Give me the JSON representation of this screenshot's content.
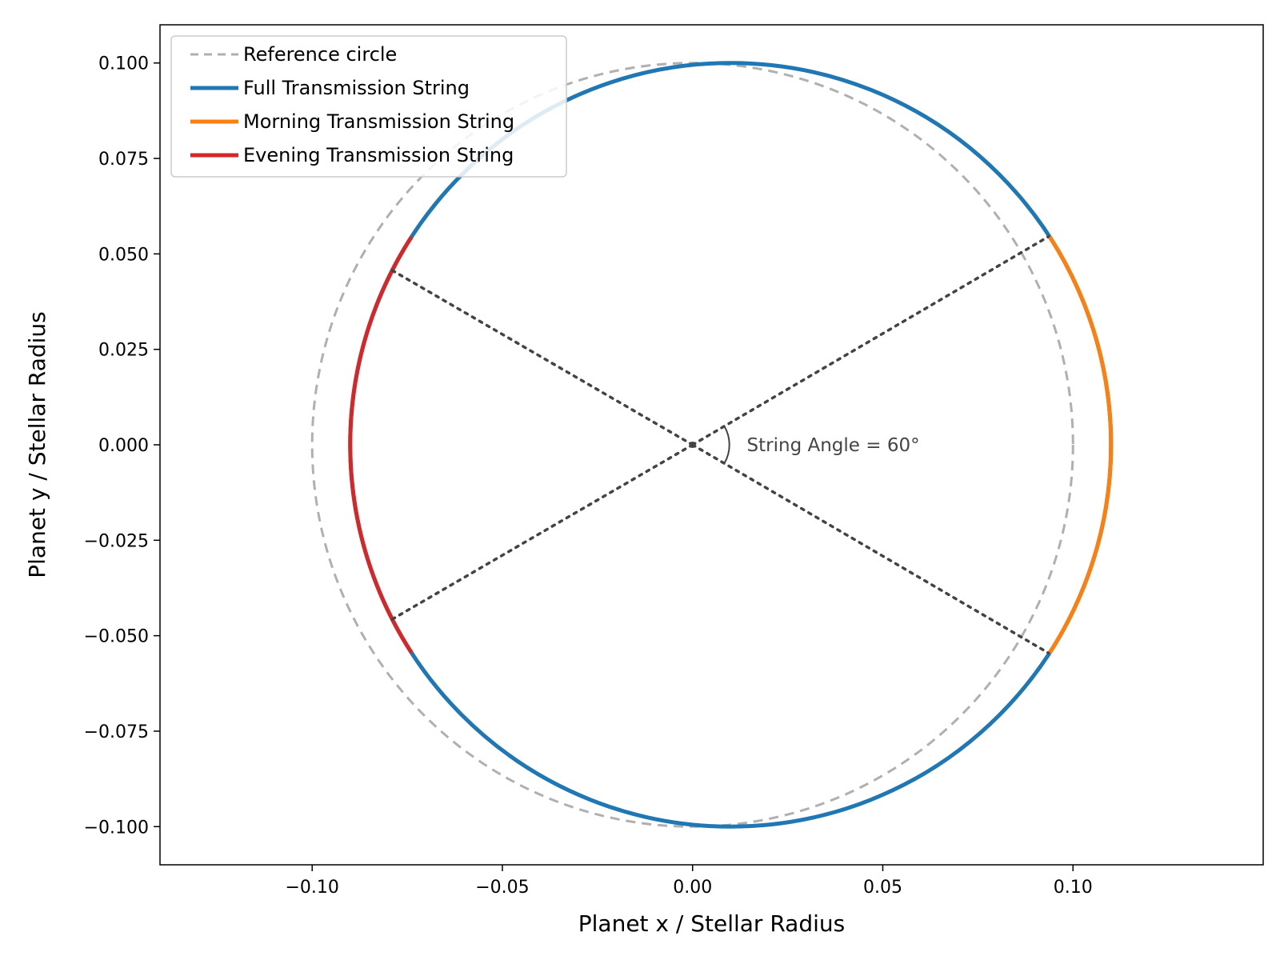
{
  "chart_data": {
    "type": "line",
    "title": "",
    "xlabel": "Planet x / Stellar Radius",
    "ylabel": "Planet y / Stellar Radius",
    "xlim": [
      -0.14,
      0.15
    ],
    "ylim": [
      -0.11,
      0.11
    ],
    "grid": false,
    "legend_position": "top-left",
    "x_ticks": [
      -0.1,
      -0.05,
      0.0,
      0.05,
      0.1
    ],
    "x_tick_labels": [
      "−0.10",
      "−0.05",
      "0.00",
      "0.05",
      "0.10"
    ],
    "y_ticks": [
      0.1,
      0.075,
      0.05,
      0.025,
      0.0,
      -0.025,
      -0.05,
      -0.075,
      -0.1
    ],
    "y_tick_labels": [
      "0.100",
      "0.075",
      "0.050",
      "0.025",
      "0.000",
      "−0.025",
      "−0.050",
      "−0.075",
      "−0.100"
    ],
    "series": [
      {
        "name": "Reference circle",
        "shape": "circle",
        "center": [
          0.0,
          0.0
        ],
        "radius": 0.1,
        "color": "#b0b0b0",
        "style": "dashed"
      },
      {
        "name": "Full Transmission String",
        "shape": "ellipse",
        "center": [
          0.01,
          0.0
        ],
        "rx": 0.1,
        "ry": 0.1,
        "color": "#1f77b4",
        "style": "solid"
      },
      {
        "name": "Morning Transmission String",
        "shape": "arc",
        "center": [
          0.01,
          0.0
        ],
        "rx": 0.1,
        "ry": 0.1,
        "angle_range_deg": [
          -33,
          33
        ],
        "color": "#ff7f0e",
        "style": "solid"
      },
      {
        "name": "Evening Transmission String",
        "shape": "arc",
        "center": [
          0.01,
          0.0
        ],
        "rx": 0.1,
        "ry": 0.1,
        "angle_range_deg": [
          147,
          213
        ],
        "color": "#d62728",
        "style": "solid"
      }
    ],
    "string_lines": [
      {
        "from": [
          0.0,
          0.0
        ],
        "to": [
          0.0935,
          0.0545
        ]
      },
      {
        "from": [
          0.0,
          0.0
        ],
        "to": [
          0.0935,
          -0.0545
        ]
      },
      {
        "from": [
          0.0,
          0.0
        ],
        "to": [
          -0.0795,
          0.046
        ]
      },
      {
        "from": [
          0.0,
          0.0
        ],
        "to": [
          -0.0795,
          -0.046
        ]
      }
    ],
    "annotation": {
      "text": "String Angle = 60°",
      "x": 0.013,
      "y": 0.0
    }
  }
}
